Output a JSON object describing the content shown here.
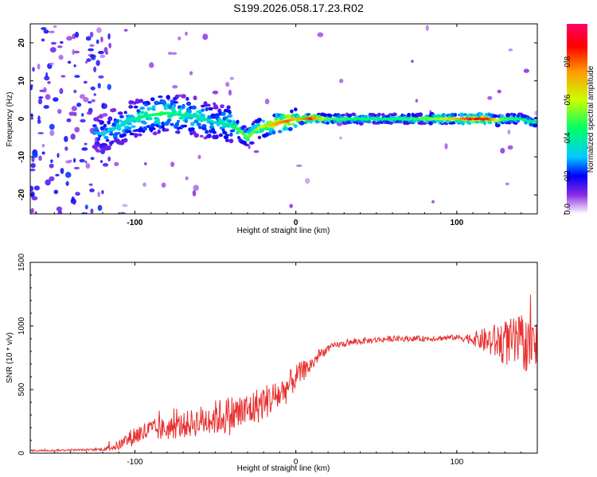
{
  "title": "S199.2026.058.17.23.R02",
  "chart_data": [
    {
      "type": "heatmap",
      "xlabel": "Height of straight line (km)",
      "ylabel": "Frequency (Hz)",
      "xlim": [
        -165,
        150
      ],
      "ylim": [
        -25,
        25
      ],
      "xticks": [
        -100,
        0,
        100
      ],
      "yticks": [
        -20,
        -10,
        0,
        10,
        20
      ],
      "colorbar": {
        "label": "Normalized spectral amplitude",
        "range": [
          0,
          1
        ],
        "ticks": [
          "0.0",
          "0.2",
          "0.4",
          "0.6",
          "0.8"
        ],
        "tick_values": [
          0,
          0.2,
          0.4,
          0.6,
          0.8
        ]
      },
      "ridge": {
        "x": [
          -165,
          -120,
          -110,
          -100,
          -90,
          -80,
          -70,
          -60,
          -50,
          -40,
          -35,
          -30,
          -25,
          -20,
          -15,
          -10,
          -5,
          0,
          5,
          10,
          20,
          40,
          60,
          80,
          100,
          110,
          120,
          125,
          130,
          140,
          150
        ],
        "frequency": [
          0,
          -4,
          -2,
          0,
          1,
          1.5,
          1,
          0.5,
          -1,
          -1.5,
          -3,
          -5,
          -3,
          -2,
          -1.5,
          -1,
          -0.5,
          0,
          0,
          0.2,
          0,
          0,
          0,
          0,
          0,
          0,
          0,
          -0.5,
          0,
          0,
          -1
        ],
        "amplitude": [
          0.1,
          0.3,
          0.35,
          0.4,
          0.45,
          0.45,
          0.4,
          0.4,
          0.35,
          0.4,
          0.5,
          0.5,
          0.55,
          0.6,
          0.7,
          0.75,
          0.8,
          0.7,
          0.75,
          0.85,
          0.5,
          0.45,
          0.45,
          0.5,
          0.7,
          0.9,
          0.85,
          0.6,
          0.5,
          0.45,
          0.4
        ]
      }
    },
    {
      "type": "line",
      "xlabel": "Height of straight line (km)",
      "ylabel": "SNR (10 * v/v)",
      "xlim": [
        -165,
        150
      ],
      "ylim": [
        0,
        1500
      ],
      "xticks": [
        -100,
        0,
        100
      ],
      "yticks": [
        0,
        500,
        1000,
        1500
      ],
      "series": [
        {
          "color": "#e83030",
          "x": [
            -165,
            -150,
            -140,
            -130,
            -120,
            -110,
            -100,
            -90,
            -80,
            -70,
            -60,
            -50,
            -40,
            -30,
            -20,
            -10,
            -5,
            0,
            5,
            10,
            15,
            20,
            25,
            30,
            40,
            60,
            80,
            100,
            110,
            120,
            130,
            140,
            150
          ],
          "y": [
            20,
            22,
            25,
            25,
            30,
            60,
            140,
            180,
            190,
            220,
            250,
            280,
            300,
            330,
            400,
            460,
            520,
            600,
            650,
            700,
            780,
            820,
            850,
            860,
            880,
            900,
            900,
            910,
            900,
            880,
            870,
            860,
            840
          ],
          "jitter": [
            8,
            8,
            8,
            8,
            10,
            40,
            80,
            90,
            90,
            100,
            120,
            140,
            160,
            150,
            140,
            130,
            120,
            100,
            80,
            60,
            40,
            30,
            25,
            25,
            25,
            22,
            22,
            22,
            50,
            120,
            180,
            220,
            200
          ]
        }
      ]
    }
  ]
}
